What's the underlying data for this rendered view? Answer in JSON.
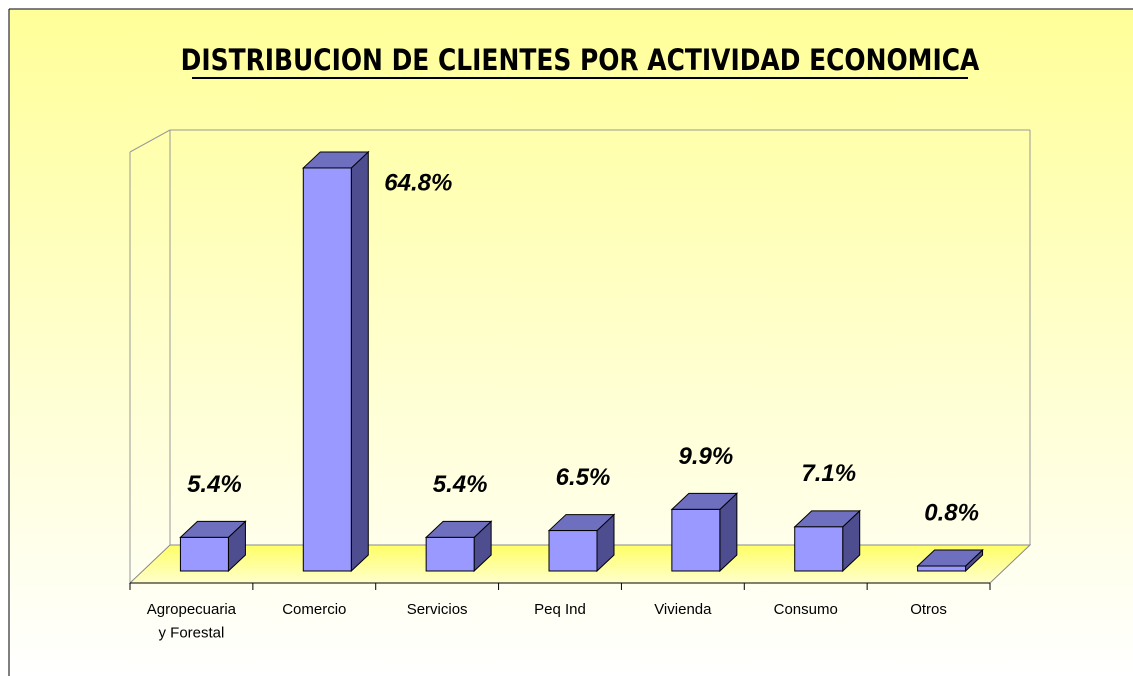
{
  "chart_data": {
    "type": "bar3d",
    "title": "DISTRIBUCION DE CLIENTES POR ACTIVIDAD ECONOMICA",
    "categories": [
      "Agropecuaria y Forestal",
      "Comercio",
      "Servicios",
      "Peq Ind",
      "Vivienda",
      "Consumo",
      "Otros"
    ],
    "values": [
      5.4,
      64.8,
      5.4,
      6.5,
      9.9,
      7.1,
      0.8
    ],
    "value_labels": [
      "5.4%",
      "64.8%",
      "5.4%",
      "6.5%",
      "9.9%",
      "7.1%",
      "0.8%"
    ],
    "color": "#9999ff"
  }
}
